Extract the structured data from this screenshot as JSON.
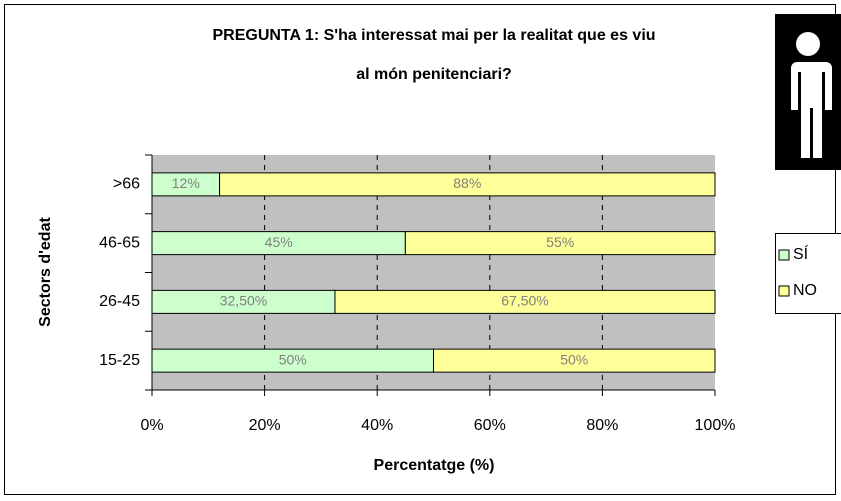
{
  "chart_data": {
    "type": "stacked_barh",
    "title": [
      "PREGUNTA 1: S'ha interessat mai per la realitat que es viu",
      "al món penitenciari?"
    ],
    "x_label": "Percentatge (%)",
    "y_label": "Sectors d'edat",
    "categories": [
      "15-25",
      "26-45",
      "46-65",
      ">66"
    ],
    "series": [
      {
        "name": "SÍ",
        "color": "#ccffcc",
        "values": [
          50,
          32.5,
          45,
          12
        ],
        "value_labels": [
          "50%",
          "32,50%",
          "45%",
          "12%"
        ]
      },
      {
        "name": "NO",
        "color": "#ffff99",
        "values": [
          50,
          67.5,
          55,
          88
        ],
        "value_labels": [
          "50%",
          "67,50%",
          "55%",
          "88%"
        ]
      }
    ],
    "xlim": [
      0,
      100
    ],
    "xticks": [
      {
        "value": 0,
        "label": "0%"
      },
      {
        "value": 20,
        "label": "20%"
      },
      {
        "value": 40,
        "label": "40%"
      },
      {
        "value": 60,
        "label": "60%"
      },
      {
        "value": 80,
        "label": "80%"
      },
      {
        "value": 100,
        "label": "100%"
      }
    ],
    "grid": true,
    "legend": "right"
  }
}
